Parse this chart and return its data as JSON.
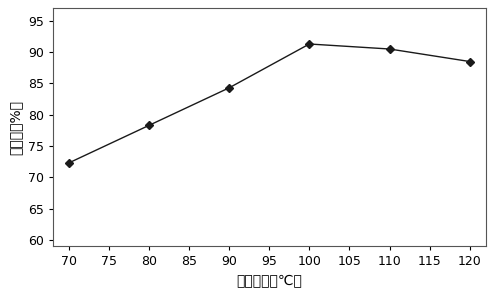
{
  "x": [
    70,
    80,
    90,
    100,
    110,
    120
  ],
  "y": [
    72.3,
    78.3,
    84.3,
    91.3,
    90.5,
    88.5
  ],
  "xlabel": "蕲決温度（℃）",
  "ylabel": "破乳率（%）",
  "xlim": [
    68,
    122
  ],
  "ylim": [
    59,
    97
  ],
  "xticks": [
    70,
    75,
    80,
    85,
    90,
    95,
    100,
    105,
    110,
    115,
    120
  ],
  "yticks": [
    60,
    65,
    70,
    75,
    80,
    85,
    90,
    95
  ],
  "line_color": "#1a1a1a",
  "marker": "D",
  "marker_size": 4,
  "marker_color": "#1a1a1a",
  "line_width": 1.0,
  "background_color": "#ffffff",
  "label_fontsize": 10,
  "tick_fontsize": 9
}
